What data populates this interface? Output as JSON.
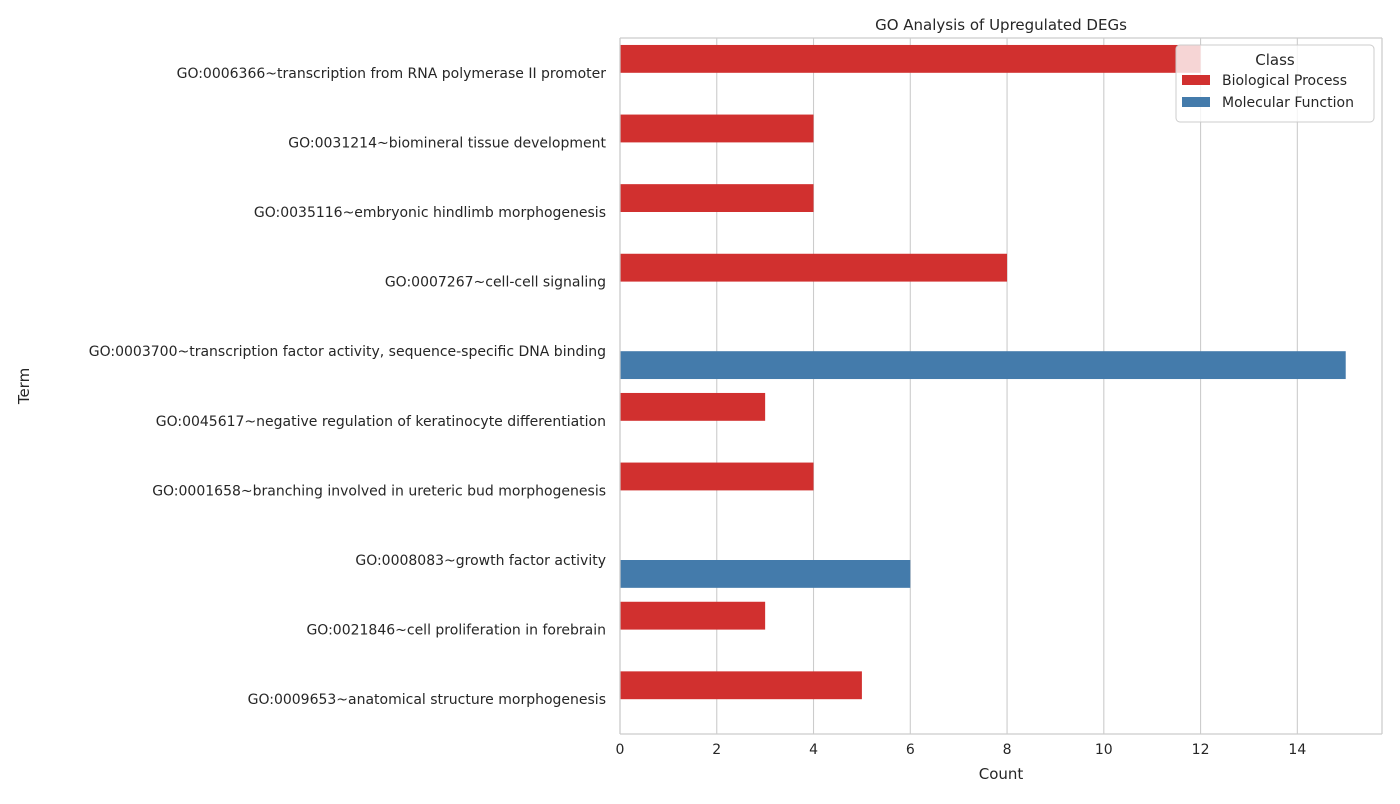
{
  "chart_data": {
    "type": "bar",
    "orientation": "horizontal",
    "title": "GO Analysis of Upregulated DEGs",
    "xlabel": "Count",
    "ylabel": "Term",
    "xlim": [
      0,
      15.75
    ],
    "xticks": [
      0,
      2,
      4,
      6,
      8,
      10,
      12,
      14
    ],
    "grid": true,
    "legend_position": "top-right",
    "legend_title": "Class",
    "categories": [
      "GO:0006366~transcription from RNA polymerase II promoter",
      "GO:0031214~biomineral tissue development",
      "GO:0035116~embryonic hindlimb morphogenesis",
      "GO:0007267~cell-cell signaling",
      "GO:0003700~transcription factor activity, sequence-specific DNA binding",
      "GO:0045617~negative regulation of keratinocyte differentiation",
      "GO:0001658~branching involved in ureteric bud morphogenesis",
      "GO:0008083~growth factor activity",
      "GO:0021846~cell proliferation in forebrain",
      "GO:0009653~anatomical structure morphogenesis"
    ],
    "series": [
      {
        "name": "Biological Process",
        "color": "#d1302f",
        "values": [
          12,
          4,
          4,
          8,
          null,
          3,
          4,
          null,
          3,
          5
        ]
      },
      {
        "name": "Molecular Function",
        "color": "#447bab",
        "values": [
          null,
          null,
          null,
          null,
          15,
          null,
          null,
          6,
          null,
          null
        ]
      }
    ]
  }
}
